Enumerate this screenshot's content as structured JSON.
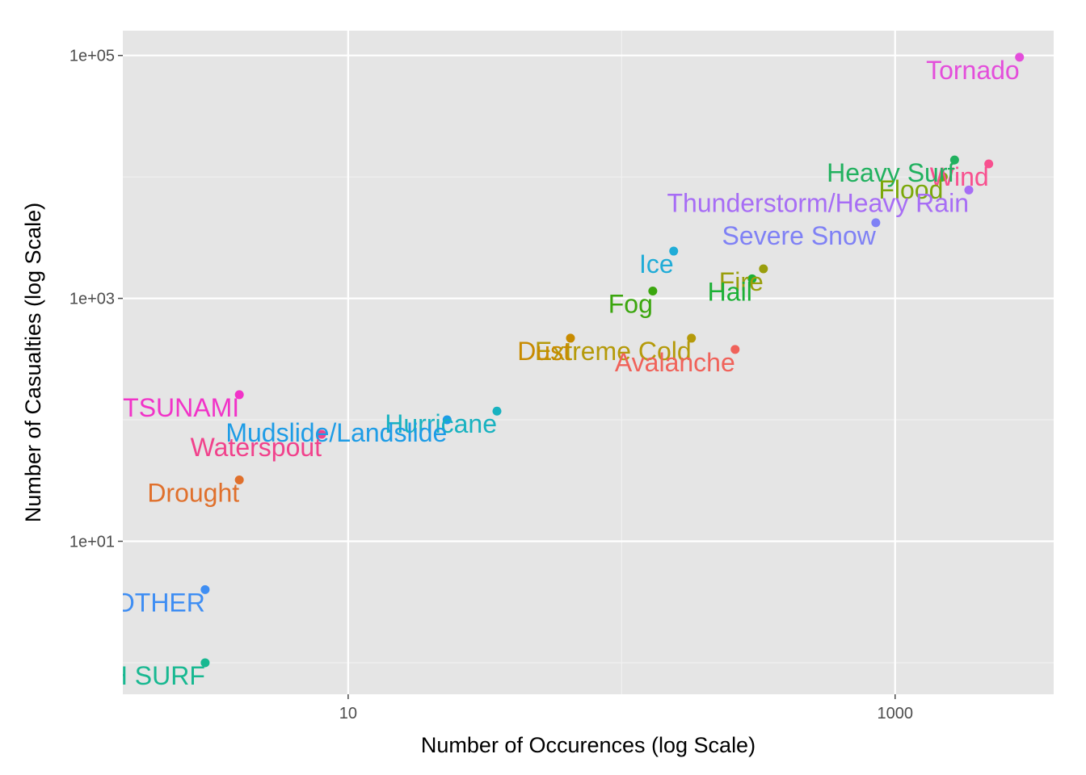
{
  "chart_data": {
    "type": "scatter",
    "title": "",
    "xlabel": "Number of Occurences (log Scale)",
    "ylabel": "Number of Casualties (log Scale)",
    "x_scale": "log10",
    "y_scale": "log10",
    "xlim": [
      1.5,
      3800
    ],
    "ylim": [
      0.55,
      160000
    ],
    "x_ticks": [
      {
        "value": 10,
        "label": "10"
      },
      {
        "value": 1000,
        "label": "1000"
      }
    ],
    "y_ticks": [
      {
        "value": 10,
        "label": "1e+01"
      },
      {
        "value": 1000,
        "label": "1e+03"
      },
      {
        "value": 100000,
        "label": "1e+05"
      }
    ],
    "grid": true,
    "legend": "none",
    "series": [
      {
        "name": "Tornado",
        "x": 2850,
        "y": 96800,
        "color": "#E44EDB"
      },
      {
        "name": "Wind",
        "x": 2200,
        "y": 12800,
        "color": "#F8508F"
      },
      {
        "name": "Heavy Surf",
        "x": 1650,
        "y": 13800,
        "color": "#21B15F"
      },
      {
        "name": "Flood",
        "x": 1500,
        "y": 10000,
        "color": "#7BA80A"
      },
      {
        "name": "Thunderstorm/Heavy Rain",
        "x": 1860,
        "y": 7800,
        "color": "#A76DF5"
      },
      {
        "name": "Severe Snow",
        "x": 850,
        "y": 4200,
        "color": "#7F81F5"
      },
      {
        "name": "Ice",
        "x": 155,
        "y": 2450,
        "color": "#20ACD7"
      },
      {
        "name": "Fire",
        "x": 330,
        "y": 1750,
        "color": "#9A9E0D"
      },
      {
        "name": "Hail",
        "x": 300,
        "y": 1450,
        "color": "#1BB035"
      },
      {
        "name": "Fog",
        "x": 130,
        "y": 1150,
        "color": "#3BA60E"
      },
      {
        "name": "Extreme Cold",
        "x": 180,
        "y": 470,
        "color": "#B59A0A"
      },
      {
        "name": "Dust",
        "x": 65,
        "y": 470,
        "color": "#C88B00"
      },
      {
        "name": "Avalanche",
        "x": 260,
        "y": 380,
        "color": "#F0625A"
      },
      {
        "name": "Hurricane",
        "x": 35,
        "y": 118,
        "color": "#18B2C0"
      },
      {
        "name": "Mudslide/Landslide",
        "x": 23,
        "y": 100,
        "color": "#1D9CE6"
      },
      {
        "name": "Waterspout",
        "x": 8,
        "y": 76,
        "color": "#F1428C"
      },
      {
        "name": "TSUNAMI",
        "x": 4,
        "y": 161,
        "color": "#F133C8"
      },
      {
        "name": "Drought",
        "x": 4,
        "y": 32,
        "color": "#E0702C"
      },
      {
        "name": "OTHER",
        "x": 3,
        "y": 4,
        "color": "#3F8EF3"
      },
      {
        "name": "HIGH SWELLS / HIGH SURF",
        "x": 3,
        "y": 1,
        "color": "#18B891"
      }
    ]
  }
}
